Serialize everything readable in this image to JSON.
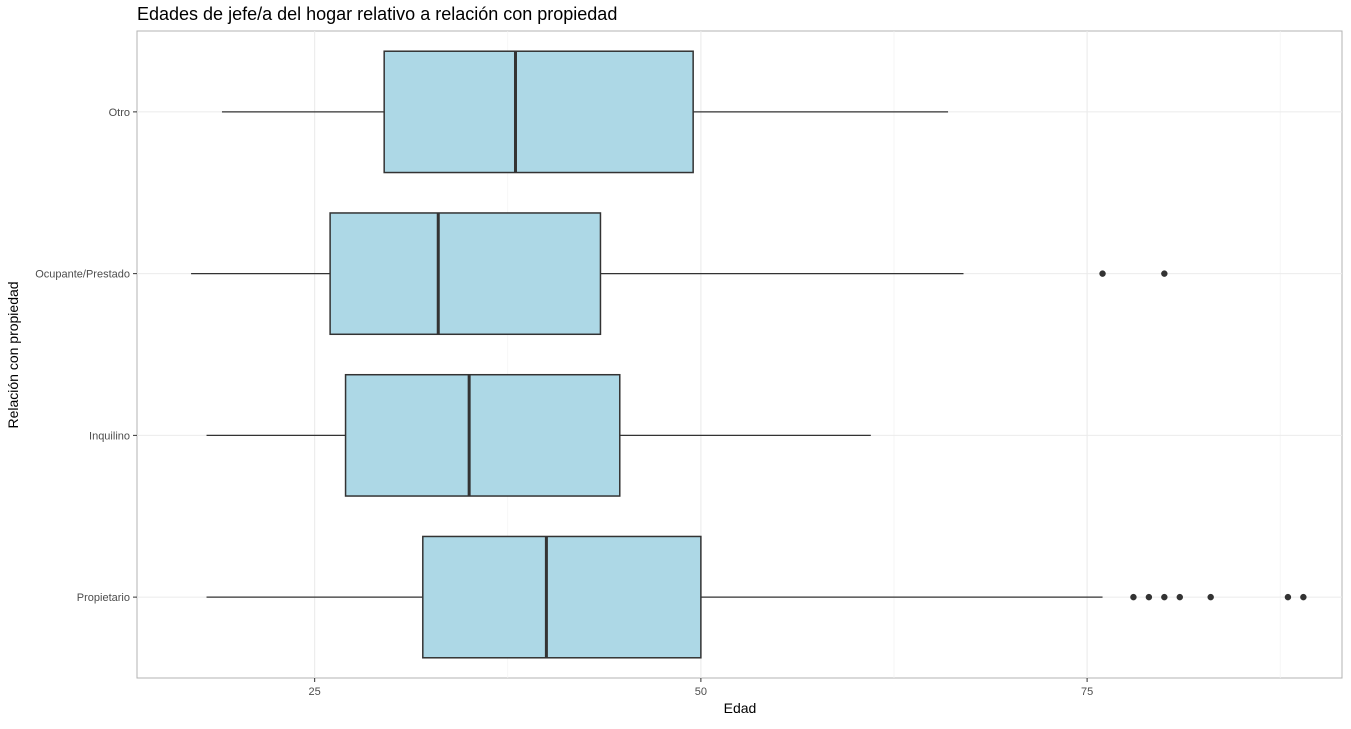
{
  "chart_data": {
    "type": "boxplot",
    "orientation": "horizontal",
    "title": "Edades de jefe/a del hogar relativo a relación con propiedad",
    "xlabel": "Edad",
    "ylabel": "Relación con propiedad",
    "xlim": [
      13.5,
      91.5
    ],
    "x_ticks": [
      25,
      50,
      75
    ],
    "grid": true,
    "box_fill": "#ADD8E6",
    "box_stroke": "#333333",
    "categories": [
      "Otro",
      "Ocupante/Prestado",
      "Inquilino",
      "Propietario"
    ],
    "boxes": [
      {
        "category": "Otro",
        "min": 19,
        "q1": 29.5,
        "median": 38,
        "q3": 49.5,
        "max": 66,
        "outliers": []
      },
      {
        "category": "Ocupante/Prestado",
        "min": 17,
        "q1": 26,
        "median": 33,
        "q3": 43.5,
        "max": 67,
        "outliers": [
          76,
          80
        ]
      },
      {
        "category": "Inquilino",
        "min": 18,
        "q1": 27,
        "median": 35,
        "q3": 44.75,
        "max": 61,
        "outliers": []
      },
      {
        "category": "Propietario",
        "min": 18,
        "q1": 32,
        "median": 40,
        "q3": 50,
        "max": 76,
        "outliers": [
          78,
          79,
          80,
          81,
          83,
          88,
          89
        ]
      }
    ]
  }
}
